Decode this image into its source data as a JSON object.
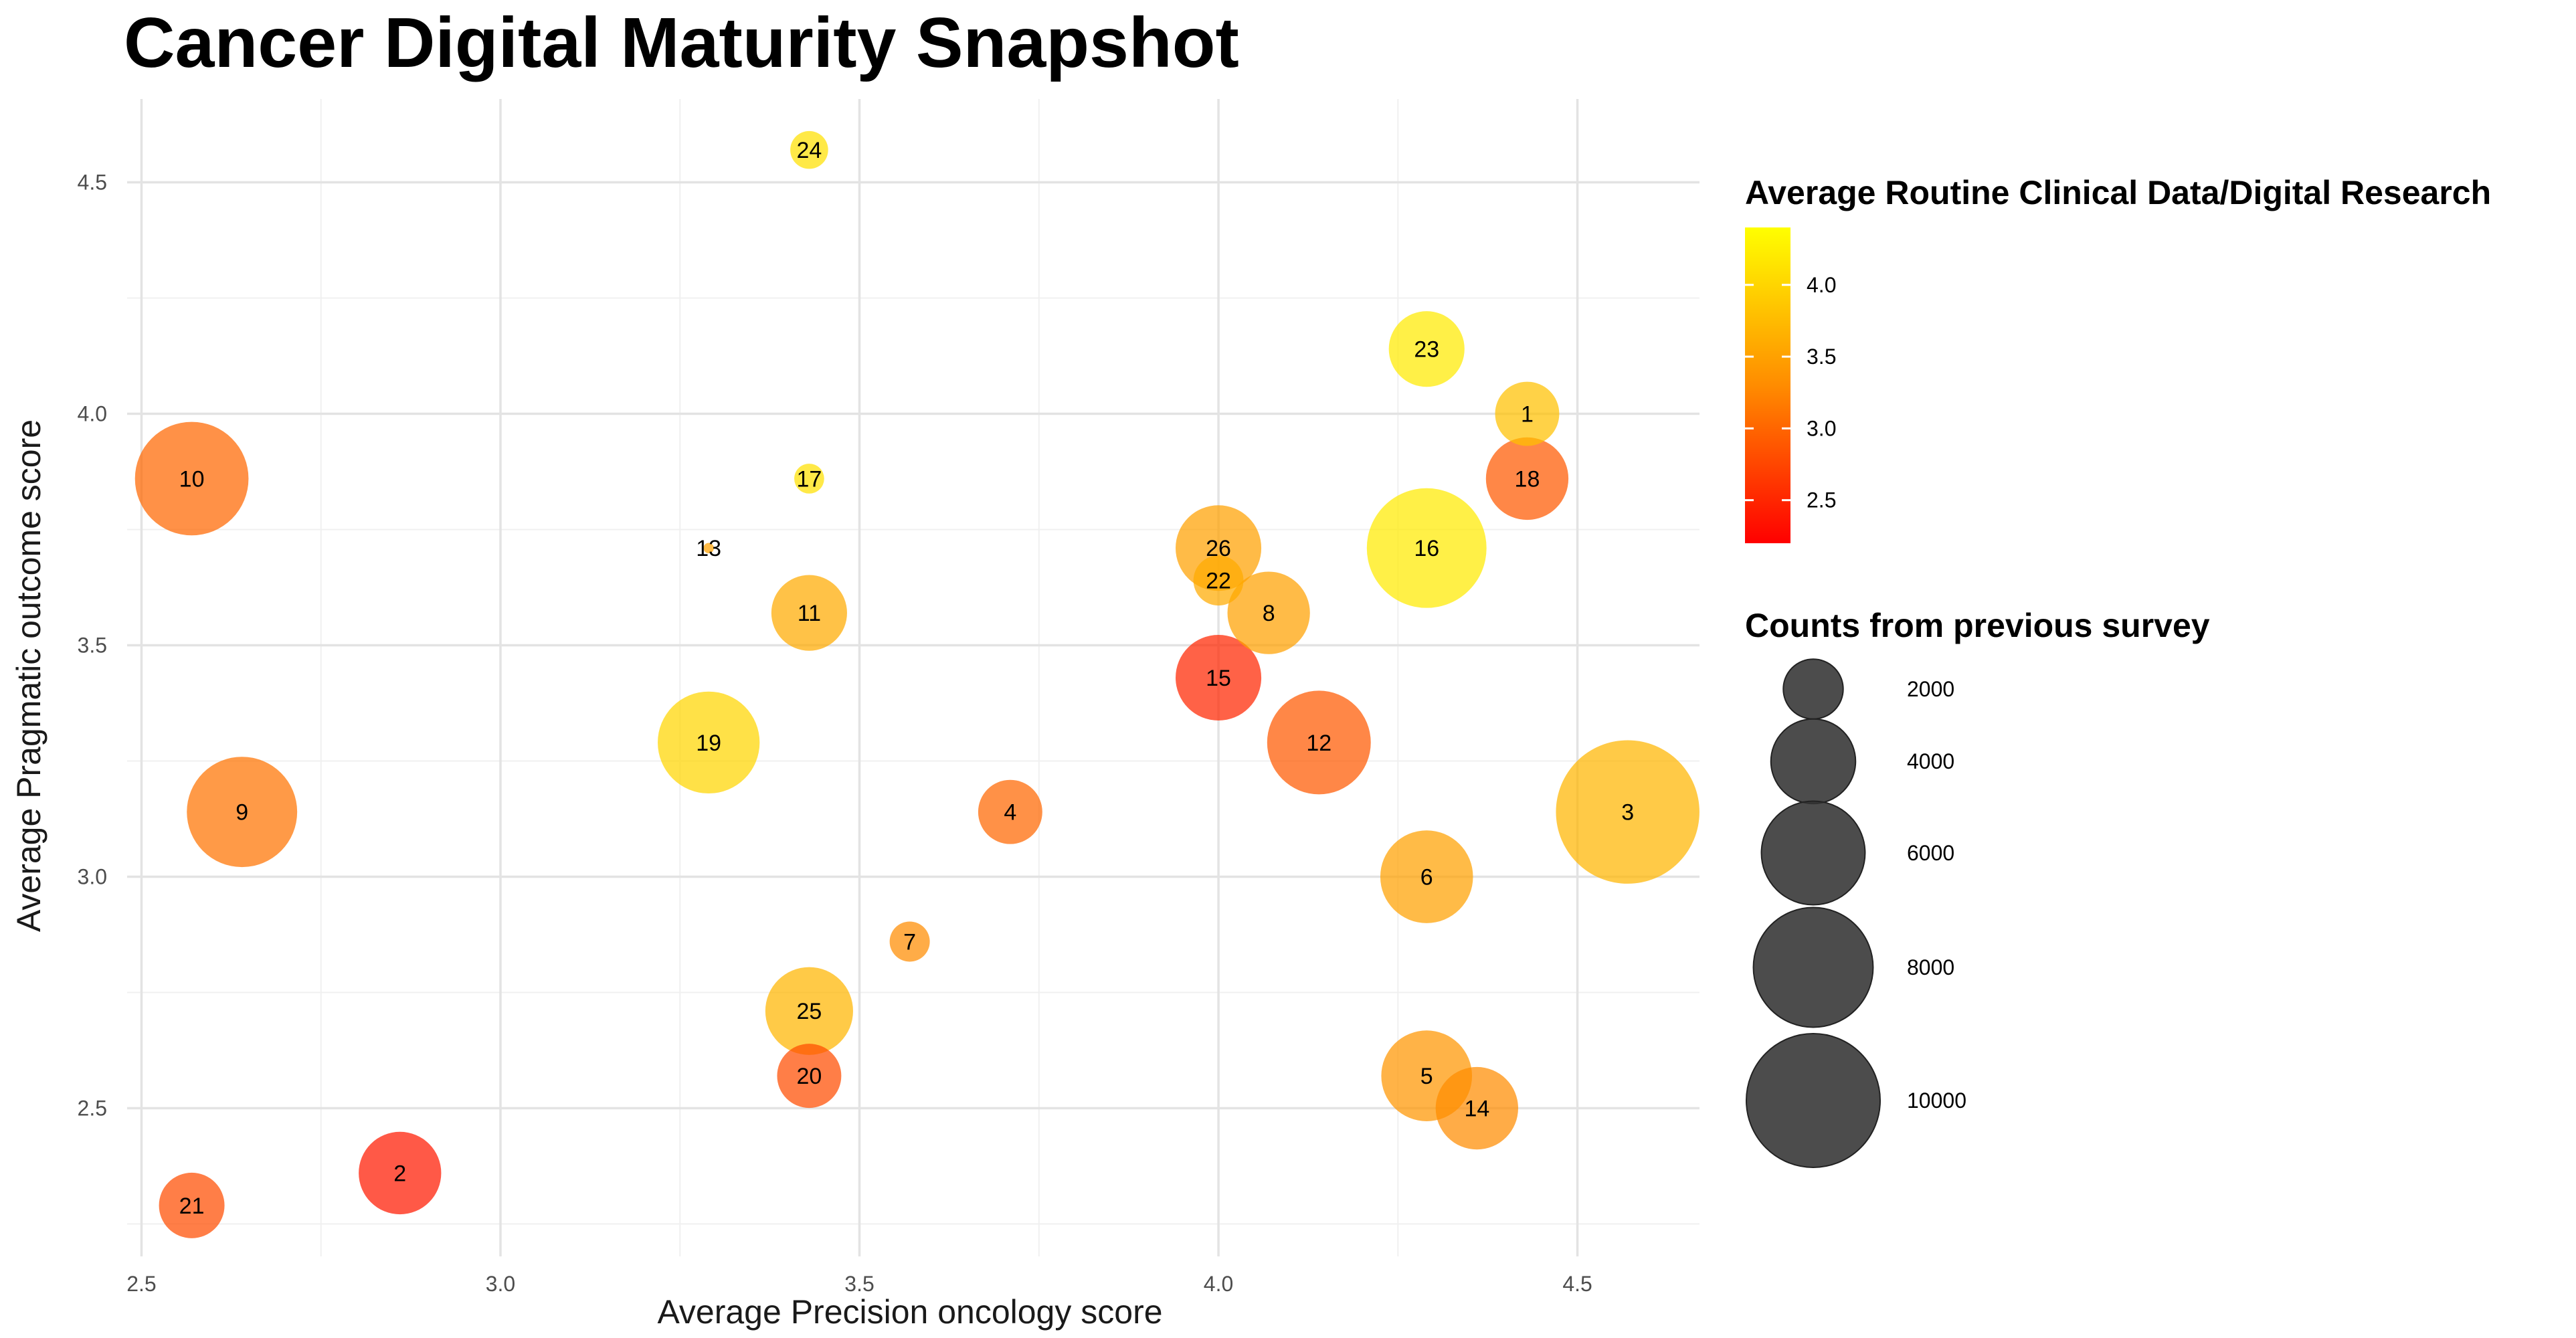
{
  "chart_data": {
    "type": "scatter",
    "title": "Cancer Digital Maturity Snapshot",
    "xlabel": "Average Precision oncology score",
    "ylabel": "Average Pragmatic outcome score",
    "xlim": [
      2.48,
      4.67
    ],
    "ylim": [
      2.18,
      4.68
    ],
    "x_ticks": [
      2.5,
      3.0,
      3.5,
      4.0,
      4.5
    ],
    "y_ticks": [
      2.5,
      3.0,
      3.5,
      4.0,
      4.5
    ],
    "x_tick_labels": [
      "2.5",
      "3.0",
      "3.5",
      "4.0",
      "4.5"
    ],
    "y_tick_labels": [
      "2.5",
      "3.0",
      "3.5",
      "4.0",
      "4.5"
    ],
    "grid": true,
    "color_legend": {
      "title": "Average Routine Clinical Data/Digital Research",
      "min": 2.2,
      "max": 4.4,
      "ticks": [
        2.5,
        3.0,
        3.5,
        4.0
      ],
      "tick_labels": [
        "2.5",
        "3.0",
        "3.5",
        "4.0"
      ],
      "low_color": "#ff0000",
      "mid_color": "#ff8c00",
      "high_color": "#ffff00",
      "placement": "right"
    },
    "size_legend": {
      "title": "Counts from previous survey",
      "values": [
        2000,
        4000,
        6000,
        8000,
        10000
      ],
      "labels": [
        "2000",
        "4000",
        "6000",
        "8000",
        "10000"
      ],
      "color": "#333333",
      "placement": "right"
    },
    "points": [
      {
        "label": "1",
        "x": 4.43,
        "y": 4.0,
        "color_value": 3.8,
        "size": 2300
      },
      {
        "label": "2",
        "x": 2.86,
        "y": 2.36,
        "color_value": 2.4,
        "size": 3800
      },
      {
        "label": "3",
        "x": 4.57,
        "y": 3.14,
        "color_value": 3.7,
        "size": 11500
      },
      {
        "label": "4",
        "x": 3.71,
        "y": 3.14,
        "color_value": 3.0,
        "size": 2300
      },
      {
        "label": "5",
        "x": 4.29,
        "y": 2.57,
        "color_value": 3.4,
        "size": 4600
      },
      {
        "label": "6",
        "x": 4.29,
        "y": 3.0,
        "color_value": 3.5,
        "size": 4800
      },
      {
        "label": "7",
        "x": 3.57,
        "y": 2.86,
        "color_value": 3.3,
        "size": 900
      },
      {
        "label": "8",
        "x": 4.07,
        "y": 3.57,
        "color_value": 3.5,
        "size": 3800
      },
      {
        "label": "9",
        "x": 2.64,
        "y": 3.14,
        "color_value": 3.1,
        "size": 6800
      },
      {
        "label": "10",
        "x": 2.57,
        "y": 3.86,
        "color_value": 3.0,
        "size": 7200
      },
      {
        "label": "11",
        "x": 3.43,
        "y": 3.57,
        "color_value": 3.6,
        "size": 3200
      },
      {
        "label": "12",
        "x": 4.14,
        "y": 3.29,
        "color_value": 2.9,
        "size": 6000
      },
      {
        "label": "13",
        "x": 3.29,
        "y": 3.71,
        "color_value": 3.5,
        "size": 60
      },
      {
        "label": "14",
        "x": 4.36,
        "y": 2.5,
        "color_value": 3.3,
        "size": 3800
      },
      {
        "label": "15",
        "x": 4.0,
        "y": 3.43,
        "color_value": 2.5,
        "size": 4100
      },
      {
        "label": "16",
        "x": 4.29,
        "y": 3.71,
        "color_value": 4.2,
        "size": 8000
      },
      {
        "label": "17",
        "x": 3.43,
        "y": 3.86,
        "color_value": 4.1,
        "size": 500
      },
      {
        "label": "18",
        "x": 4.43,
        "y": 3.86,
        "color_value": 2.9,
        "size": 3800
      },
      {
        "label": "19",
        "x": 3.29,
        "y": 3.29,
        "color_value": 4.0,
        "size": 5800
      },
      {
        "label": "20",
        "x": 3.43,
        "y": 2.57,
        "color_value": 2.8,
        "size": 2300
      },
      {
        "label": "21",
        "x": 2.57,
        "y": 2.29,
        "color_value": 2.8,
        "size": 2400
      },
      {
        "label": "22",
        "x": 4.0,
        "y": 3.64,
        "color_value": 3.6,
        "size": 1400
      },
      {
        "label": "23",
        "x": 4.29,
        "y": 4.14,
        "color_value": 4.2,
        "size": 3200
      },
      {
        "label": "24",
        "x": 3.43,
        "y": 4.57,
        "color_value": 4.1,
        "size": 800
      },
      {
        "label": "25",
        "x": 3.43,
        "y": 2.71,
        "color_value": 3.7,
        "size": 4300
      },
      {
        "label": "26",
        "x": 4.0,
        "y": 3.71,
        "color_value": 3.5,
        "size": 4100
      }
    ]
  }
}
